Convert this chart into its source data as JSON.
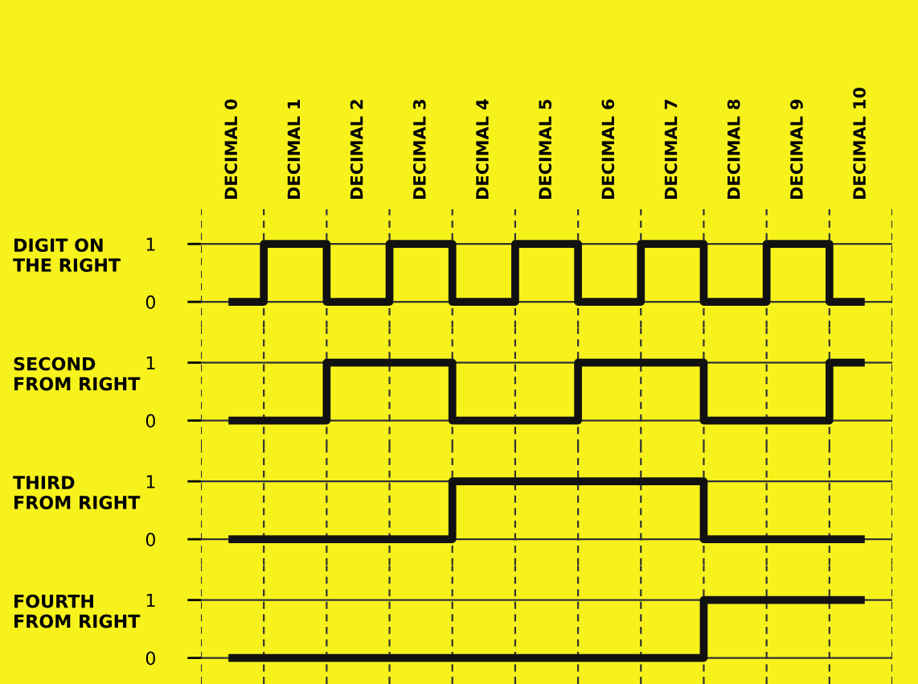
{
  "chart_data": [
    {
      "type": "step",
      "categories": [
        "DECIMAL 0",
        "DECIMAL 1",
        "DECIMAL 2",
        "DECIMAL 3",
        "DECIMAL 4",
        "DECIMAL 5",
        "DECIMAL 6",
        "DECIMAL 7",
        "DECIMAL 8",
        "DECIMAL 9",
        "DECIMAL 10"
      ],
      "ylabel": "DIGIT ON\nTHE RIGHT",
      "ylim": [
        -0.45,
        1.6
      ],
      "yticks": [
        0,
        1
      ],
      "grid": true,
      "color": "#111111",
      "values": [
        0,
        1,
        0,
        1,
        0,
        1,
        0,
        1,
        0,
        1,
        0
      ]
    },
    {
      "type": "step",
      "categories": [
        null,
        null,
        null,
        null,
        null,
        null,
        null,
        null,
        null,
        null,
        null
      ],
      "ylabel": "SECOND\nFROM RIGHT",
      "ylim": [
        -0.45,
        1.6
      ],
      "yticks": [
        0,
        1
      ],
      "grid": true,
      "tick_labels": "y",
      "color": "#111111",
      "values": [
        0,
        0,
        1,
        1,
        0,
        0,
        1,
        1,
        0,
        0,
        1
      ]
    },
    {
      "type": "step",
      "categories": [
        null,
        null,
        null,
        null,
        null,
        null,
        null,
        null,
        null,
        null,
        null
      ],
      "ylabel": "THIRD\nFROM RIGHT",
      "ylim": [
        -0.45,
        1.6
      ],
      "yticks": [
        0,
        1
      ],
      "grid": true,
      "tick_labels": "y",
      "color": "#111111",
      "values": [
        0,
        0,
        0,
        0,
        1,
        1,
        1,
        1,
        0,
        0,
        0
      ]
    },
    {
      "type": "step",
      "categories": [
        null,
        null,
        null,
        null,
        null,
        null,
        null,
        null,
        null,
        null,
        null
      ],
      "ylabel": "FOURTH\nFROM RIGHT",
      "ylim": [
        -0.45,
        1.6
      ],
      "yticks": [
        0,
        1
      ],
      "grid": true,
      "tick_labels": "y",
      "color": "#111111",
      "values": [
        0,
        0,
        0,
        0,
        0,
        0,
        0,
        0,
        1,
        1,
        1
      ]
    }
  ]
}
